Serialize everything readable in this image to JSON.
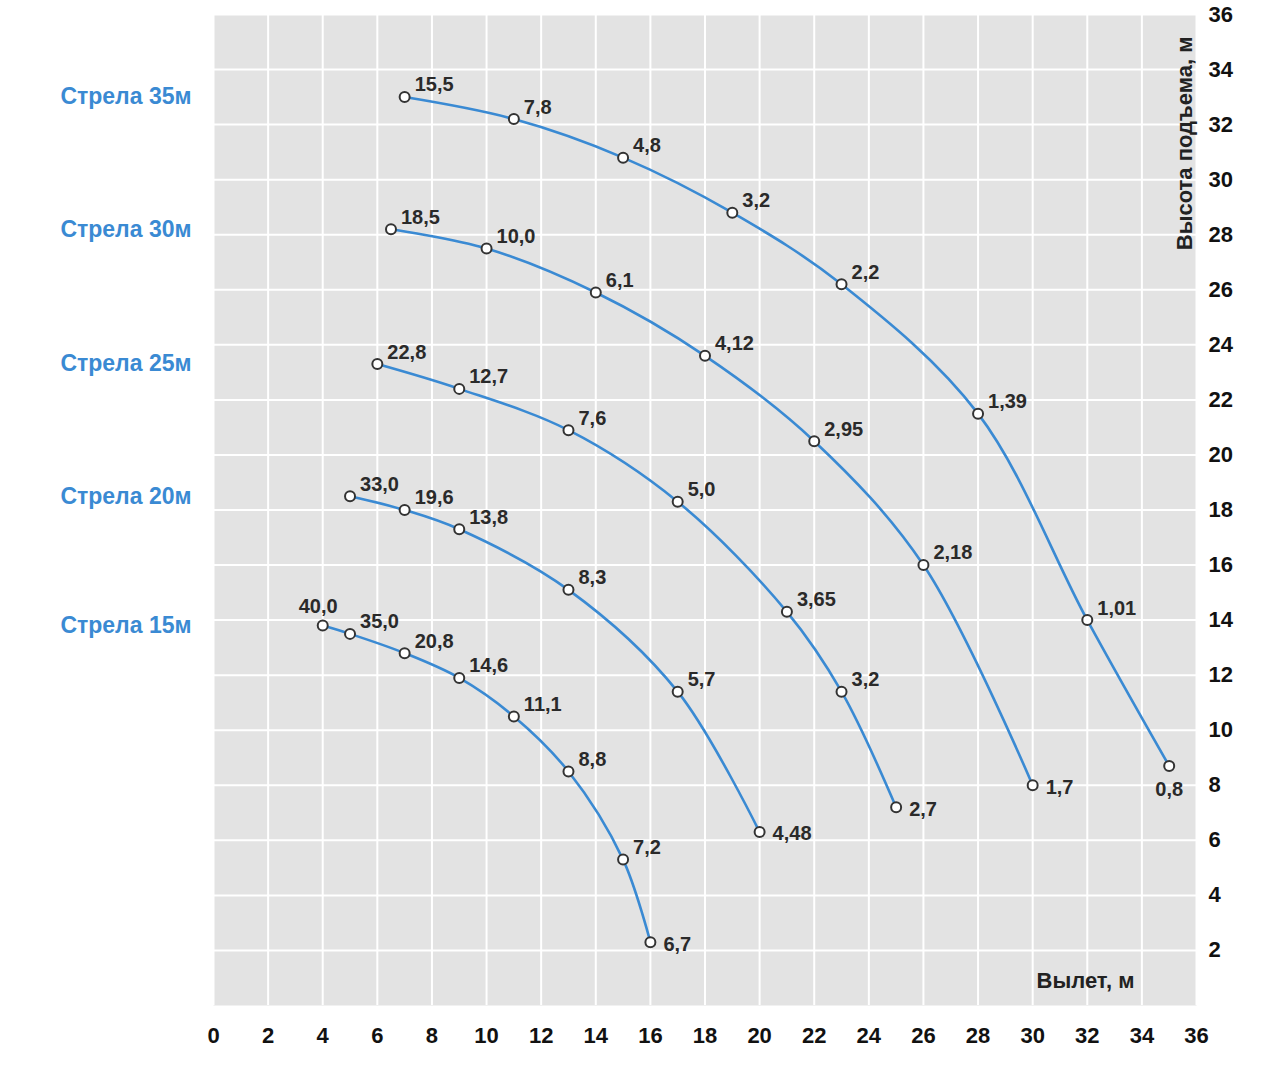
{
  "chart_data": {
    "type": "line",
    "xlabel": "Вылет, м",
    "ylabel": "Высота подъема, м",
    "xlim": [
      0,
      36
    ],
    "ylim": [
      0,
      36
    ],
    "xticks": [
      0,
      2,
      4,
      6,
      8,
      10,
      12,
      14,
      16,
      18,
      20,
      22,
      24,
      26,
      28,
      30,
      32,
      34,
      36
    ],
    "yticks": [
      2,
      4,
      6,
      8,
      10,
      12,
      14,
      16,
      18,
      20,
      22,
      24,
      26,
      28,
      30,
      32,
      34,
      36
    ],
    "grid": true,
    "marker": "circle",
    "series": [
      {
        "name": "Стрела 35м",
        "color": "#3a8ad3",
        "x": [
          7,
          11,
          15,
          19,
          23,
          28,
          32,
          35
        ],
        "values": [
          33.0,
          32.2,
          30.8,
          28.8,
          26.2,
          21.5,
          14.0,
          8.7
        ],
        "loads": [
          15.5,
          7.8,
          4.8,
          3.2,
          2.2,
          1.39,
          1.01,
          0.8
        ],
        "load_labels": [
          "15,5",
          "7,8",
          "4,8",
          "3,2",
          "2,2",
          "1,39",
          "1,01",
          "0,8"
        ]
      },
      {
        "name": "Стрела 30м",
        "color": "#3a8ad3",
        "x": [
          6.5,
          10,
          14,
          18,
          22,
          26,
          30
        ],
        "values": [
          28.2,
          27.5,
          25.9,
          23.6,
          20.5,
          16.0,
          8.0
        ],
        "loads": [
          18.5,
          10.0,
          6.1,
          4.12,
          2.95,
          2.18,
          1.7
        ],
        "load_labels": [
          "18,5",
          "10,0",
          "6,1",
          "4,12",
          "2,95",
          "2,18",
          "1,7"
        ]
      },
      {
        "name": "Стрела 25м",
        "color": "#3a8ad3",
        "x": [
          6,
          9,
          13,
          17,
          21,
          23,
          25
        ],
        "values": [
          23.3,
          22.4,
          20.9,
          18.3,
          14.3,
          11.4,
          7.2
        ],
        "loads": [
          22.8,
          12.7,
          7.6,
          5.0,
          3.65,
          3.2,
          2.7
        ],
        "load_labels": [
          "22,8",
          "12,7",
          "7,6",
          "5,0",
          "3,65",
          "3,2",
          "2,7"
        ]
      },
      {
        "name": "Стрела 20м",
        "color": "#3a8ad3",
        "x": [
          5,
          7,
          9,
          13,
          17,
          20
        ],
        "values": [
          18.5,
          18.0,
          17.3,
          15.1,
          11.4,
          6.3
        ],
        "loads": [
          33.0,
          19.6,
          13.8,
          8.3,
          5.7,
          4.48
        ],
        "load_labels": [
          "33,0",
          "19,6",
          "13,8",
          "8,3",
          "5,7",
          "4,48"
        ]
      },
      {
        "name": "Стрела 15м",
        "color": "#3a8ad3",
        "x": [
          4,
          5,
          7,
          9,
          11,
          13,
          15,
          16
        ],
        "values": [
          13.8,
          13.5,
          12.8,
          11.9,
          10.5,
          8.5,
          5.3,
          2.3
        ],
        "loads": [
          40.0,
          35.0,
          20.8,
          14.6,
          11.1,
          8.8,
          7.2,
          6.7
        ],
        "load_labels": [
          "40,0",
          "35,0",
          "20,8",
          "14,6",
          "11,1",
          "8,8",
          "7,2",
          "6,7"
        ]
      }
    ]
  }
}
